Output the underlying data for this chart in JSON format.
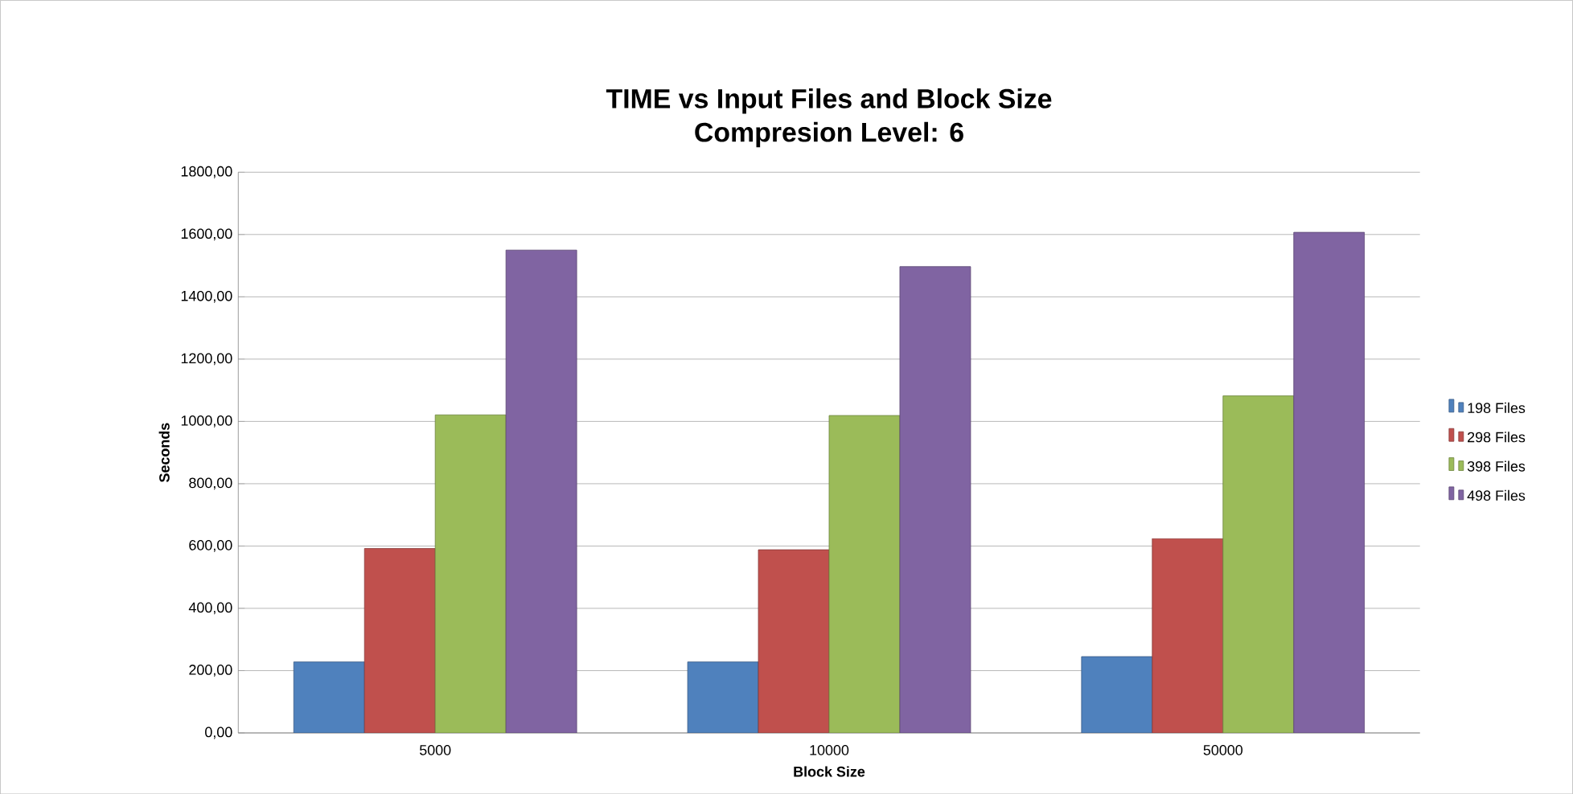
{
  "chart_data": {
    "type": "bar",
    "title": "TIME vs Input Files and Block Size",
    "subtitle": "Compresion Level: 6",
    "xlabel": "Block Size",
    "ylabel": "Seconds",
    "categories": [
      "5000",
      "10000",
      "50000"
    ],
    "series": [
      {
        "name": "198 Files",
        "color": "#4f81bd",
        "values": [
          228,
          228,
          245
        ]
      },
      {
        "name": "298 Files",
        "color": "#c0504d",
        "values": [
          592,
          588,
          624
        ]
      },
      {
        "name": "398 Files",
        "color": "#9bbb59",
        "values": [
          1021,
          1019,
          1082
        ]
      },
      {
        "name": "498 Files",
        "color": "#8064a2",
        "values": [
          1550,
          1497,
          1607
        ]
      }
    ],
    "ylim": [
      0,
      1800
    ],
    "yticks": [
      {
        "value": 0,
        "label": "0,00"
      },
      {
        "value": 200,
        "label": "200,00"
      },
      {
        "value": 400,
        "label": "400,00"
      },
      {
        "value": 600,
        "label": "600,00"
      },
      {
        "value": 800,
        "label": "800,00"
      },
      {
        "value": 1000,
        "label": "1000,00"
      },
      {
        "value": 1200,
        "label": "1200,00"
      },
      {
        "value": 1400,
        "label": "1400,00"
      },
      {
        "value": 1600,
        "label": "1600,00"
      },
      {
        "value": 1800,
        "label": "1800,00"
      }
    ],
    "grid": "y",
    "legend": "right"
  }
}
